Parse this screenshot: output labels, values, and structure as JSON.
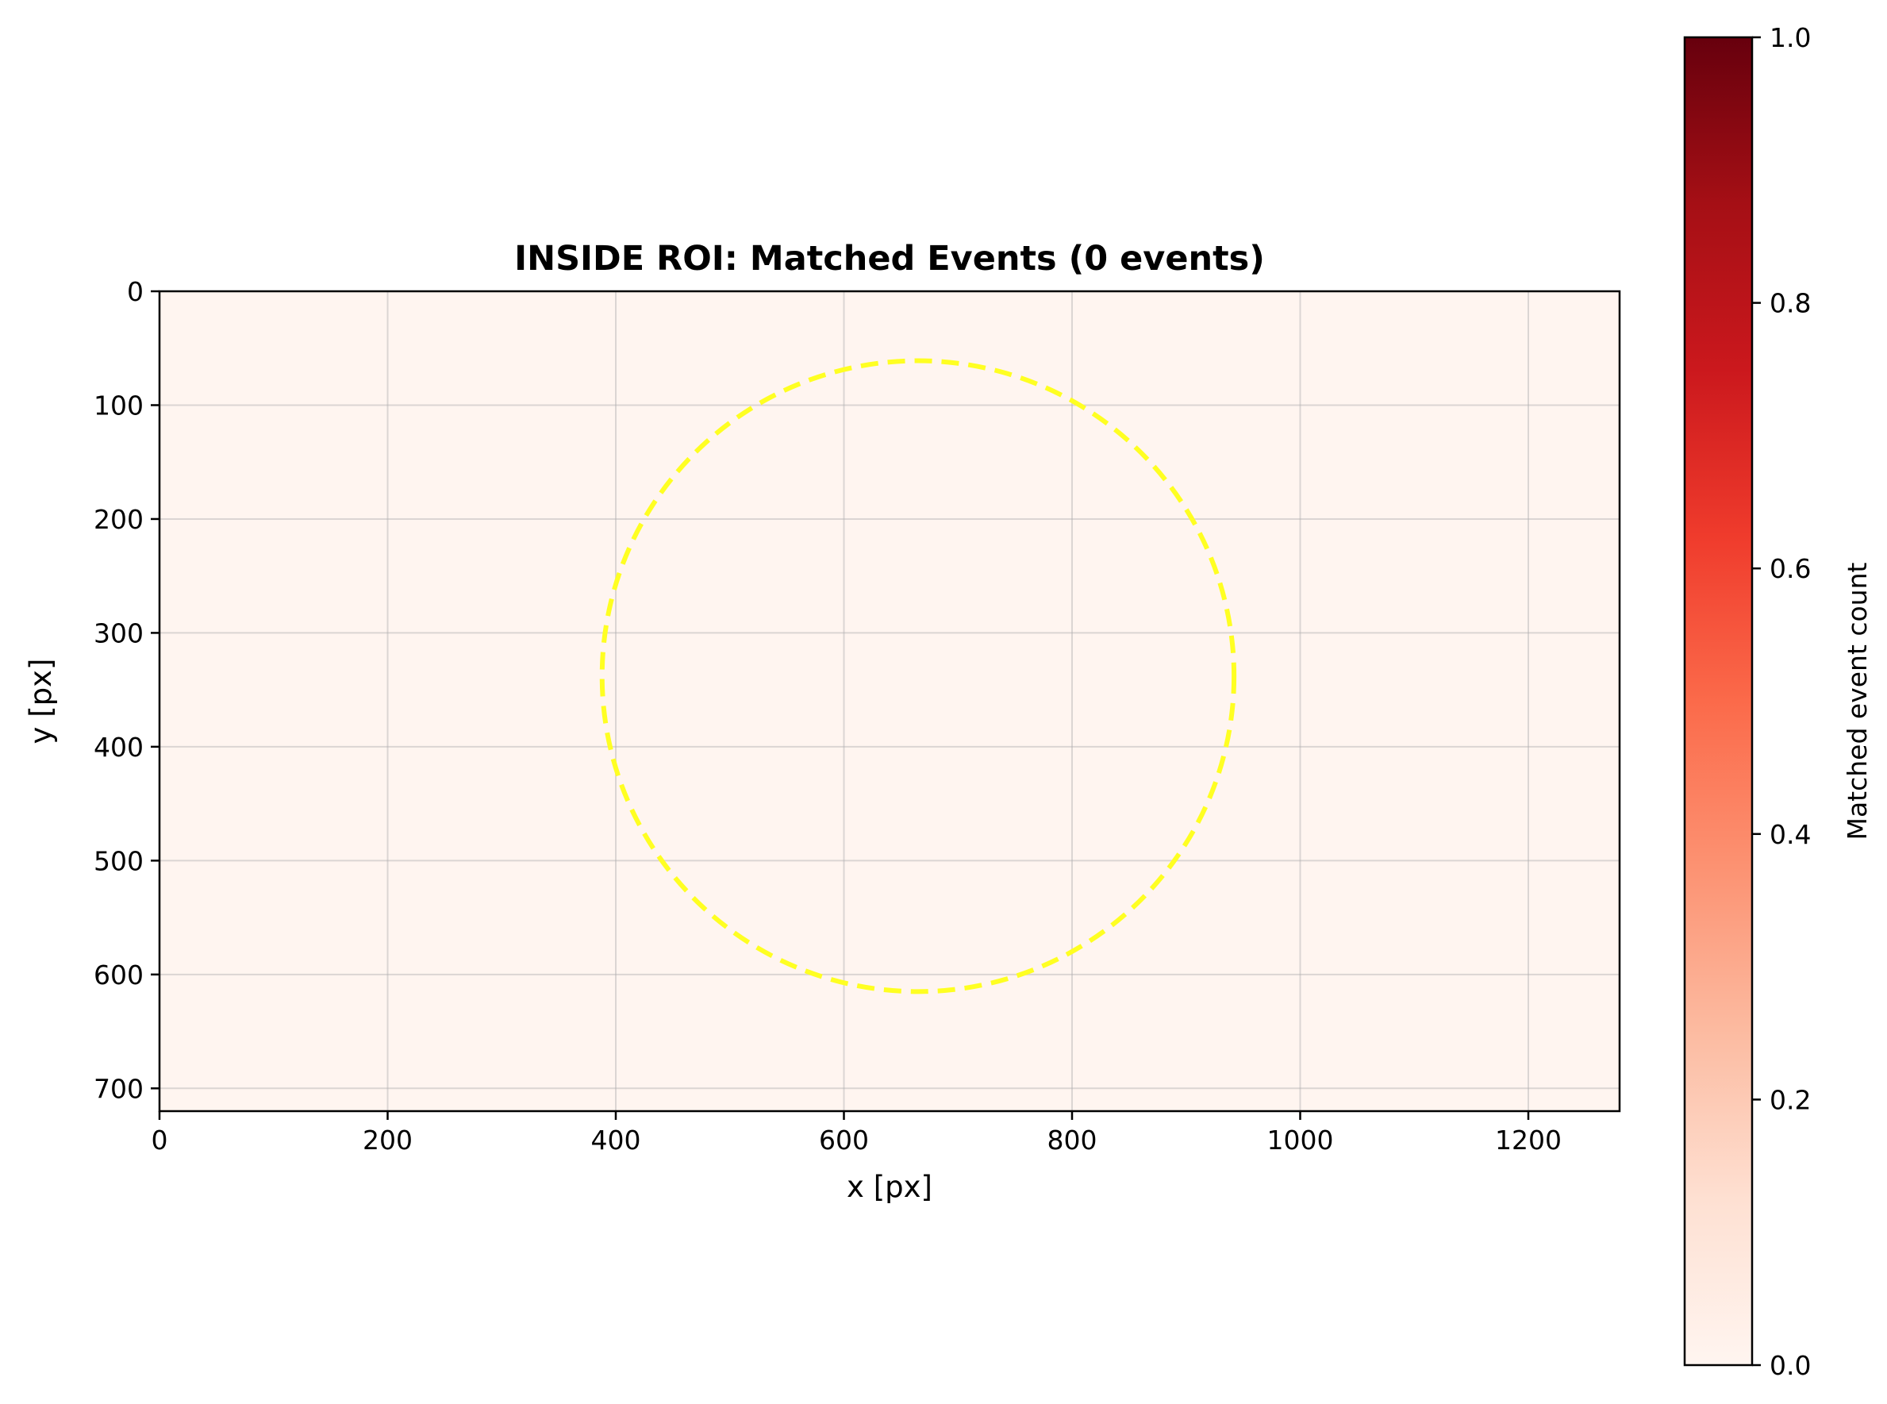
{
  "chart_data": {
    "type": "heatmap",
    "title": "INSIDE ROI: Matched Events (0 events)",
    "xlabel": "x [px]",
    "ylabel": "y [px]",
    "xlim": [
      0,
      1280
    ],
    "ylim": [
      720,
      0
    ],
    "y_inverted": true,
    "x_ticks": [
      0,
      200,
      400,
      600,
      800,
      1000,
      1200
    ],
    "y_ticks": [
      0,
      100,
      200,
      300,
      400,
      500,
      600,
      700
    ],
    "grid": true,
    "colormap": "Reds",
    "heatmap_fill_color": "#fff5f0",
    "matched_event_count": 0,
    "values_all": 0,
    "roi_circle": {
      "center_x": 665,
      "center_y": 338,
      "radius_x": 277,
      "radius_y": 277,
      "style": "dashed",
      "color": "#ffff22"
    },
    "colorbar": {
      "label": "Matched event count",
      "range": [
        0.0,
        1.0
      ],
      "ticks": [
        "0.0",
        "0.2",
        "0.4",
        "0.6",
        "0.8",
        "1.0"
      ],
      "tick_values": [
        0.0,
        0.2,
        0.4,
        0.6,
        0.8,
        1.0
      ],
      "colors": [
        "#fff5f0",
        "#fee0d2",
        "#fcbba1",
        "#fc9272",
        "#fb6a4a",
        "#ef3b2c",
        "#cb181d",
        "#a50f15",
        "#67000d"
      ]
    }
  }
}
